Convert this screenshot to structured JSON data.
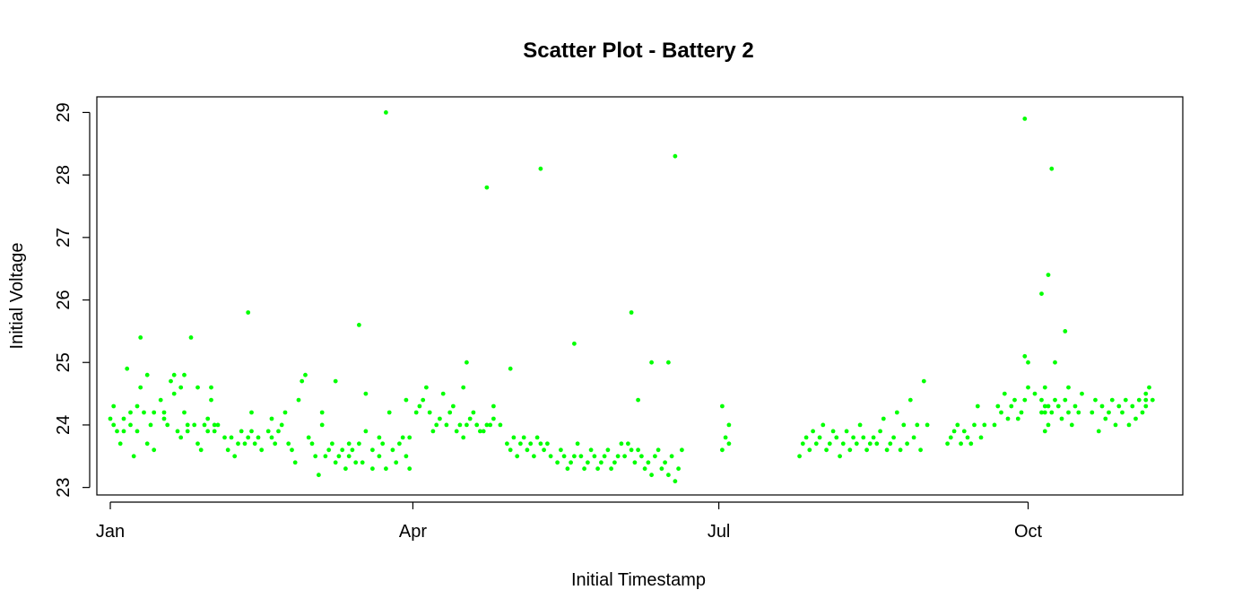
{
  "chart_data": {
    "type": "scatter",
    "title": "Scatter Plot - Battery 2",
    "xlabel": "Initial Timestamp",
    "ylabel": "Initial Voltage",
    "x_ticks": [
      {
        "label": "Jan",
        "value": "2021-01-01"
      },
      {
        "label": "Apr",
        "value": "2021-04-01"
      },
      {
        "label": "Jul",
        "value": "2021-07-01"
      },
      {
        "label": "Oct",
        "value": "2021-10-01"
      }
    ],
    "y_ticks": [
      23,
      24,
      25,
      26,
      27,
      28,
      29
    ],
    "xlim": [
      "2020-12-28",
      "2021-11-16"
    ],
    "ylim": [
      22.88,
      29.25
    ],
    "grid": false,
    "point_color": "#00ff00",
    "series": [
      {
        "x": [
          "2021-01-01",
          "2021-01-02",
          "2021-01-02",
          "2021-01-03",
          "2021-01-04",
          "2021-01-05",
          "2021-01-05",
          "2021-01-06",
          "2021-01-07",
          "2021-01-07",
          "2021-01-08",
          "2021-01-09",
          "2021-01-09",
          "2021-01-10",
          "2021-01-10",
          "2021-01-11",
          "2021-01-12",
          "2021-01-12",
          "2021-01-13",
          "2021-01-14",
          "2021-01-14",
          "2021-01-16",
          "2021-01-17",
          "2021-01-17",
          "2021-01-18",
          "2021-01-19",
          "2021-01-20",
          "2021-01-20",
          "2021-01-21",
          "2021-01-22",
          "2021-01-22",
          "2021-01-23",
          "2021-01-23",
          "2021-01-24",
          "2021-01-24",
          "2021-01-25",
          "2021-01-26",
          "2021-01-27",
          "2021-01-27",
          "2021-01-28",
          "2021-01-29",
          "2021-01-30",
          "2021-01-30",
          "2021-01-31",
          "2021-01-31",
          "2021-02-01",
          "2021-02-01",
          "2021-02-02",
          "2021-02-04",
          "2021-02-05",
          "2021-02-06",
          "2021-02-07",
          "2021-02-08",
          "2021-02-09",
          "2021-02-10",
          "2021-02-11",
          "2021-02-12",
          "2021-02-12",
          "2021-02-13",
          "2021-02-14",
          "2021-02-15",
          "2021-02-17",
          "2021-02-18",
          "2021-02-18",
          "2021-02-19",
          "2021-02-20",
          "2021-02-21",
          "2021-02-22",
          "2021-02-23",
          "2021-02-24",
          "2021-02-25",
          "2021-02-26",
          "2021-02-27",
          "2021-02-28",
          "2021-03-01",
          "2021-03-02",
          "2021-03-03",
          "2021-03-04",
          "2021-03-05",
          "2021-03-05",
          "2021-03-06",
          "2021-03-07",
          "2021-03-08",
          "2021-03-09",
          "2021-03-10",
          "2021-03-11",
          "2021-03-12",
          "2021-03-13",
          "2021-03-13",
          "2021-03-14",
          "2021-03-15",
          "2021-03-16",
          "2021-03-17",
          "2021-03-18",
          "2021-03-20",
          "2021-03-20",
          "2021-03-22",
          "2021-03-22",
          "2021-03-23",
          "2021-03-24",
          "2021-03-25",
          "2021-03-26",
          "2021-03-27",
          "2021-03-28",
          "2021-03-29",
          "2021-03-30",
          "2021-03-30",
          "2021-03-31",
          "2021-03-31",
          "2021-04-02",
          "2021-04-03",
          "2021-04-04",
          "2021-04-05",
          "2021-04-06",
          "2021-04-07",
          "2021-04-08",
          "2021-04-09",
          "2021-04-10",
          "2021-04-11",
          "2021-04-12",
          "2021-04-13",
          "2021-04-14",
          "2021-04-15",
          "2021-04-16",
          "2021-04-17",
          "2021-04-18",
          "2021-04-19",
          "2021-04-20",
          "2021-04-21",
          "2021-04-22",
          "2021-04-23",
          "2021-04-24",
          "2021-04-25",
          "2021-04-25",
          "2021-04-27",
          "2021-04-29",
          "2021-04-30",
          "2021-05-01",
          "2021-05-02",
          "2021-05-03",
          "2021-05-04",
          "2021-05-05",
          "2021-05-06",
          "2021-05-07",
          "2021-05-08",
          "2021-05-09",
          "2021-05-10",
          "2021-05-11",
          "2021-05-12",
          "2021-05-14",
          "2021-05-15",
          "2021-05-16",
          "2021-05-17",
          "2021-05-18",
          "2021-05-19",
          "2021-05-20",
          "2021-05-21",
          "2021-05-22",
          "2021-05-23",
          "2021-05-24",
          "2021-05-25",
          "2021-05-26",
          "2021-05-27",
          "2021-05-28",
          "2021-05-29",
          "2021-05-30",
          "2021-05-31",
          "2021-06-01",
          "2021-06-02",
          "2021-06-03",
          "2021-06-04",
          "2021-06-05",
          "2021-06-06",
          "2021-06-07",
          "2021-06-08",
          "2021-06-09",
          "2021-06-10",
          "2021-06-11",
          "2021-06-12",
          "2021-06-13",
          "2021-06-14",
          "2021-06-15",
          "2021-06-16",
          "2021-06-17",
          "2021-06-18",
          "2021-06-19",
          "2021-06-20",
          "2021-07-02",
          "2021-07-03",
          "2021-07-04",
          "2021-07-04",
          "2021-07-25",
          "2021-07-26",
          "2021-07-27",
          "2021-07-28",
          "2021-07-29",
          "2021-07-30",
          "2021-07-31",
          "2021-08-01",
          "2021-08-02",
          "2021-08-03",
          "2021-08-04",
          "2021-08-05",
          "2021-08-06",
          "2021-08-07",
          "2021-08-08",
          "2021-08-09",
          "2021-08-10",
          "2021-08-11",
          "2021-08-12",
          "2021-08-13",
          "2021-08-14",
          "2021-08-15",
          "2021-08-16",
          "2021-08-17",
          "2021-08-18",
          "2021-08-19",
          "2021-08-20",
          "2021-08-21",
          "2021-08-22",
          "2021-08-23",
          "2021-08-24",
          "2021-08-25",
          "2021-08-26",
          "2021-08-27",
          "2021-08-28",
          "2021-08-29",
          "2021-08-30",
          "2021-08-31",
          "2021-09-01",
          "2021-09-07",
          "2021-09-08",
          "2021-09-09",
          "2021-09-10",
          "2021-09-11",
          "2021-09-12",
          "2021-09-13",
          "2021-09-14",
          "2021-09-15",
          "2021-09-16",
          "2021-09-17",
          "2021-09-18",
          "2021-09-21",
          "2021-09-22",
          "2021-09-23",
          "2021-09-24",
          "2021-09-25",
          "2021-09-26",
          "2021-09-27",
          "2021-09-28",
          "2021-09-29",
          "2021-09-30",
          "2021-10-01",
          "2021-10-05",
          "2021-10-05",
          "2021-10-06",
          "2021-10-06",
          "2021-10-07",
          "2021-10-07",
          "2021-10-08",
          "2021-10-09",
          "2021-10-10",
          "2021-10-11",
          "2021-10-12",
          "2021-10-13",
          "2021-10-14",
          "2021-10-15",
          "2021-10-16",
          "2021-10-17",
          "2021-10-20",
          "2021-10-21",
          "2021-10-22",
          "2021-10-23",
          "2021-10-24",
          "2021-10-25",
          "2021-10-26",
          "2021-10-27",
          "2021-10-28",
          "2021-10-29",
          "2021-10-30",
          "2021-10-31",
          "2021-11-01",
          "2021-11-02",
          "2021-11-03",
          "2021-11-04",
          "2021-11-05",
          "2021-11-05",
          "2021-11-06",
          "2021-11-07",
          "2021-03-18",
          "2021-04-16",
          "2021-04-30",
          "2021-06-07",
          "2021-09-30",
          "2021-10-06",
          "2021-10-03",
          "2021-10-06",
          "2021-11-05",
          "2021-02-11",
          "2021-03-09",
          "2021-04-17",
          "2021-05-19",
          "2021-06-05",
          "2021-10-01",
          "2021-10-09",
          "2021-10-13",
          "2021-06-11",
          "2021-07-02"
        ],
        "y": [
          24.1,
          24.0,
          24.3,
          23.9,
          23.7,
          24.1,
          23.9,
          24.9,
          24.0,
          24.2,
          23.5,
          24.3,
          23.9,
          24.6,
          25.4,
          24.2,
          23.7,
          24.8,
          24.0,
          23.6,
          24.2,
          24.4,
          24.1,
          24.2,
          24.0,
          24.7,
          24.5,
          24.8,
          23.9,
          24.6,
          23.8,
          24.2,
          24.8,
          24.0,
          23.9,
          25.4,
          24.0,
          24.6,
          23.7,
          23.6,
          24.0,
          23.9,
          24.1,
          24.4,
          24.6,
          23.9,
          24.0,
          24.0,
          23.8,
          23.6,
          23.8,
          23.5,
          23.7,
          23.9,
          23.7,
          23.8,
          23.9,
          24.2,
          23.7,
          23.8,
          23.6,
          23.9,
          24.1,
          23.8,
          23.7,
          23.9,
          24.0,
          24.2,
          23.7,
          23.6,
          23.4,
          24.4,
          24.7,
          24.8,
          23.8,
          23.7,
          23.5,
          23.2,
          24.0,
          24.2,
          23.5,
          23.6,
          23.7,
          23.4,
          23.5,
          23.6,
          23.3,
          23.7,
          23.5,
          23.6,
          23.4,
          23.7,
          23.4,
          23.9,
          23.6,
          23.3,
          23.8,
          23.5,
          23.7,
          23.3,
          24.2,
          23.6,
          23.4,
          23.7,
          23.8,
          23.5,
          24.4,
          23.3,
          23.8,
          24.2,
          24.3,
          24.4,
          24.6,
          24.2,
          23.9,
          24.0,
          24.1,
          24.5,
          24.0,
          24.2,
          24.3,
          23.9,
          24.0,
          23.8,
          24.0,
          24.1,
          24.2,
          24.0,
          23.9,
          23.9,
          24.0,
          24.0,
          24.3,
          24.1,
          24.0,
          23.7,
          23.6,
          23.8,
          23.5,
          23.7,
          23.8,
          23.6,
          23.7,
          23.5,
          23.8,
          23.7,
          23.6,
          23.7,
          23.5,
          23.4,
          23.6,
          23.5,
          23.3,
          23.4,
          23.5,
          23.7,
          23.5,
          23.3,
          23.4,
          23.6,
          23.5,
          23.3,
          23.4,
          23.5,
          23.6,
          23.3,
          23.4,
          23.5,
          23.7,
          23.5,
          23.7,
          23.6,
          23.4,
          23.6,
          23.5,
          23.3,
          23.4,
          23.2,
          23.5,
          23.6,
          23.3,
          23.4,
          23.2,
          23.5,
          23.1,
          23.3,
          23.6,
          23.6,
          23.8,
          24.0,
          23.7,
          23.5,
          23.7,
          23.8,
          23.6,
          23.9,
          23.7,
          23.8,
          24.0,
          23.6,
          23.7,
          23.9,
          23.8,
          23.5,
          23.7,
          23.9,
          23.6,
          23.8,
          23.7,
          24.0,
          23.8,
          23.6,
          23.7,
          23.8,
          23.7,
          23.9,
          24.1,
          23.6,
          23.7,
          23.8,
          24.2,
          23.6,
          24.0,
          23.7,
          24.4,
          23.8,
          24.0,
          23.6,
          24.7,
          24.0,
          23.7,
          23.8,
          23.9,
          24.0,
          23.7,
          23.9,
          23.8,
          23.7,
          24.0,
          24.3,
          23.8,
          24.0,
          24.0,
          24.3,
          24.2,
          24.5,
          24.1,
          24.3,
          24.4,
          24.1,
          24.2,
          24.4,
          24.6,
          24.2,
          24.4,
          23.9,
          24.6,
          24.3,
          24.0,
          24.2,
          24.4,
          24.3,
          24.1,
          24.4,
          24.2,
          24.0,
          24.3,
          24.2,
          24.5,
          24.2,
          24.4,
          23.9,
          24.3,
          24.1,
          24.2,
          24.4,
          24.0,
          24.3,
          24.2,
          24.4,
          24.0,
          24.3,
          24.1,
          24.4,
          24.2,
          24.3,
          24.5,
          24.6,
          24.4,
          24.5,
          24.6,
          24.9,
          24.4,
          25.1,
          24.3,
          24.5,
          24.2,
          24.4,
          25.8,
          24.7,
          25.0,
          25.3,
          25.8,
          25.0,
          25.0,
          24.6,
          25.0,
          24.3
        ]
      },
      {
        "x": [
          "2021-03-24",
          "2021-04-23",
          "2021-05-09",
          "2021-06-18",
          "2021-09-30",
          "2021-10-08",
          "2021-10-07",
          "2021-10-05",
          "2021-03-16",
          "2021-06-16",
          "2021-10-12"
        ],
        "y": [
          29.0,
          27.8,
          28.1,
          28.3,
          28.9,
          28.1,
          26.4,
          26.1,
          25.6,
          25.0,
          25.5
        ]
      }
    ]
  }
}
